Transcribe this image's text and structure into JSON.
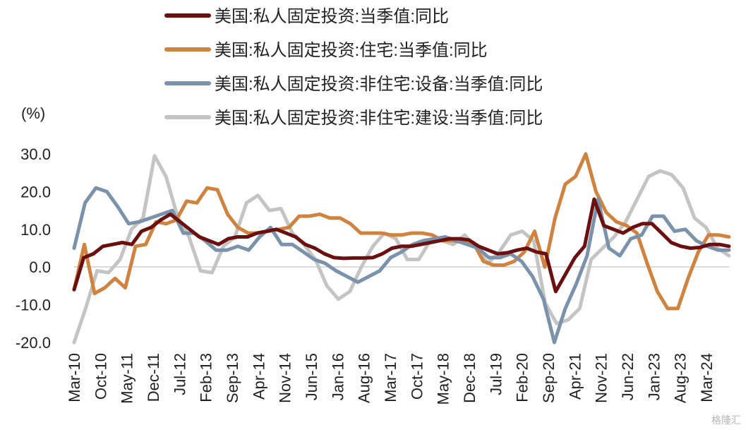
{
  "watermark": "格隆汇",
  "chart_data": {
    "type": "line",
    "unit_label": "(%)",
    "ylim": [
      -20,
      30
    ],
    "yticks": [
      "30.0",
      "20.0",
      "10.0",
      "0.0",
      "-10.0",
      "-20.0"
    ],
    "ytick_values": [
      30,
      20,
      10,
      0,
      -10,
      -20
    ],
    "x_tick_labels": [
      "Mar-10",
      "Oct-10",
      "May-11",
      "Dec-11",
      "Jul-12",
      "Feb-13",
      "Sep-13",
      "Apr-14",
      "Nov-14",
      "Jun-15",
      "Jan-16",
      "Aug-16",
      "Mar-17",
      "Oct-17",
      "May-18",
      "Dec-18",
      "Jul-19",
      "Feb-20",
      "Sep-20",
      "Apr-21",
      "Nov-21",
      "Jun-22",
      "Jan-23",
      "Aug-23",
      "Mar-24"
    ],
    "x_start_quarter": "2010Q1",
    "x_end_quarter": "2024Q3",
    "legend_position": "top",
    "series": [
      {
        "name": "美国:私人固定投资:当季值:同比",
        "color": "#6b0f0f",
        "values": [
          -6,
          2.5,
          3.5,
          5.5,
          6,
          6.5,
          6,
          9.5,
          10.5,
          12.5,
          14,
          12,
          10,
          8,
          7,
          6,
          7.5,
          8,
          8,
          9,
          9.5,
          10,
          9,
          8,
          6,
          5,
          3.5,
          2.5,
          2.3,
          2.4,
          2.4,
          2.5,
          3.5,
          5,
          5.5,
          5.5,
          6,
          6.5,
          7,
          7.5,
          7.5,
          7.2,
          5.5,
          4.5,
          3.5,
          3.8,
          4.5,
          5,
          4,
          3.5,
          -6.5,
          -2,
          2.5,
          5.5,
          18,
          11,
          10,
          9,
          10.5,
          11.5,
          11.5,
          9,
          6.5,
          5.5,
          5,
          5.2,
          6,
          6,
          5.5
        ]
      },
      {
        "name": "美国:私人固定投资:住宅:当季值:同比",
        "color": "#d0833f",
        "values": [
          -6,
          6,
          -7,
          -5.5,
          -3,
          -5.5,
          5.5,
          6,
          12,
          11.5,
          12.5,
          17.5,
          17,
          21,
          20.5,
          14,
          10.5,
          9,
          9,
          9.5,
          10,
          10.5,
          13.5,
          13.5,
          14,
          13,
          13,
          11.5,
          9,
          9,
          9,
          8.5,
          8.5,
          9,
          9,
          8.5,
          7,
          7,
          6.5,
          6.5,
          1.5,
          0.5,
          0.5,
          1.5,
          4,
          9.5,
          0,
          13,
          22,
          24,
          33,
          20,
          14.5,
          12,
          11,
          9,
          1,
          -6.5,
          -11,
          -11,
          -3,
          4,
          8.5,
          8.5,
          8
        ]
      },
      {
        "name": "美国:私人固定投资:非住宅:设备:当季值:同比",
        "color": "#7b92ad",
        "values": [
          5,
          17,
          21,
          20,
          16,
          11.5,
          12,
          13,
          14,
          15,
          9,
          9,
          7,
          4.5,
          4.5,
          5.5,
          4.5,
          8,
          10.5,
          6,
          6,
          4,
          2,
          1,
          -1,
          -2.5,
          -4,
          -2.5,
          -1,
          2.5,
          4,
          6,
          7,
          7.5,
          8,
          7,
          6,
          5,
          2.5,
          2.5,
          3.5,
          1.5,
          -2.5,
          -8.5,
          -20,
          -11,
          -4.5,
          3,
          18,
          5,
          3,
          7.5,
          8.5,
          13.5,
          13.5,
          9.5,
          10,
          7,
          5.5,
          4.5,
          4.5
        ]
      },
      {
        "name": "美国:私人固定投资:非住宅:建设:当季值:同比",
        "color": "#c4c4c4",
        "values": [
          -20,
          -11,
          -1,
          -1.5,
          2,
          10,
          13,
          29.5,
          24,
          13.5,
          8,
          -1,
          -1.5,
          5.5,
          8,
          17,
          19,
          15,
          15.5,
          9,
          6,
          2,
          -5,
          -8.5,
          -6.5,
          0,
          5.5,
          9,
          7.5,
          2,
          2,
          7,
          7,
          6,
          8.5,
          5,
          1,
          4,
          8.5,
          9.5,
          7,
          -9.5,
          -15,
          -14,
          -11,
          2,
          5,
          8,
          12,
          18,
          24,
          25.5,
          24.5,
          21,
          13,
          10.5,
          5,
          3
        ]
      }
    ]
  }
}
